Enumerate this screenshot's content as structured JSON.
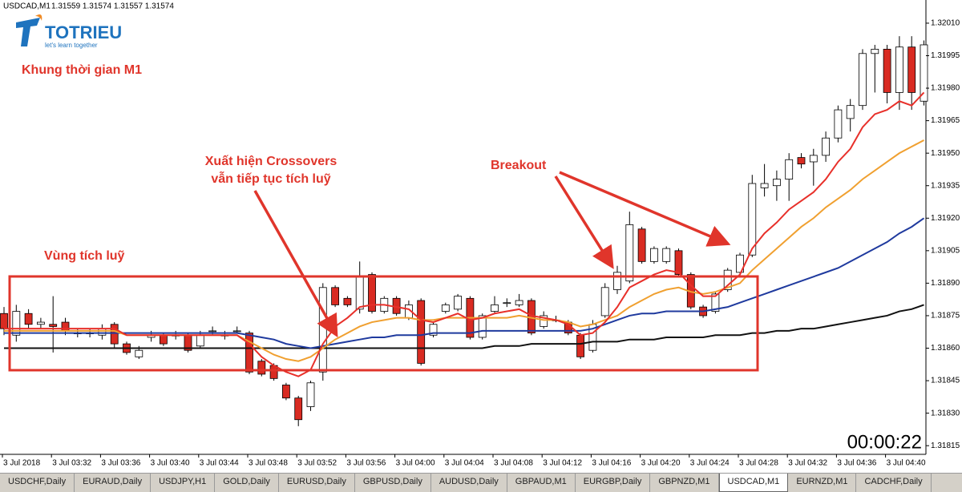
{
  "header": {
    "symbol": "USDCAD,M1",
    "quote": "1.31559 1.31574 1.31557 1.31574"
  },
  "logo": {
    "name": "TOTRIEU",
    "tagline": "let's learn together"
  },
  "timer": "00:00:22",
  "tabs": [
    "USDCHF,Daily",
    "EURAUD,Daily",
    "USDJPY,H1",
    "GOLD,Daily",
    "EURUSD,Daily",
    "GBPUSD,Daily",
    "AUDUSD,Daily",
    "GBPAUD,M1",
    "EURGBP,Daily",
    "GBPNZD,M1",
    "USDCAD,M1",
    "EURNZD,M1",
    "CADCHF,Daily"
  ],
  "chart_data": {
    "type": "candlestick",
    "annotations": [
      "Khung thời gian M1",
      "Xuất hiện Crossovers",
      "vẫn tiếp tục tích luỹ",
      "Breakout",
      "Vùng tích luỹ"
    ],
    "categories": [
      "3 Jul 2018",
      null,
      null,
      null,
      "3 Jul 03:32",
      null,
      null,
      null,
      "3 Jul 03:36",
      null,
      null,
      null,
      "3 Jul 03:40",
      null,
      null,
      null,
      "3 Jul 03:44",
      null,
      null,
      null,
      "3 Jul 03:48",
      null,
      null,
      null,
      "3 Jul 03:52",
      null,
      null,
      null,
      "3 Jul 03:56",
      null,
      null,
      null,
      "3 Jul 04:00",
      null,
      null,
      null,
      "3 Jul 04:04",
      null,
      null,
      null,
      "3 Jul 04:08",
      null,
      null,
      null,
      "3 Jul 04:12",
      null,
      null,
      null,
      "3 Jul 04:16",
      null,
      null,
      null,
      "3 Jul 04:20",
      null,
      null,
      null,
      "3 Jul 04:24",
      null,
      null,
      null,
      "3 Jul 04:28",
      null,
      null,
      null,
      "3 Jul 04:32",
      null,
      null,
      null,
      "3 Jul 04:36",
      null,
      null,
      null,
      "3 Jul 04:40",
      null,
      null,
      null
    ],
    "open": [
      1.31876,
      1.31866,
      1.31876,
      1.31871,
      1.31871,
      1.31872,
      1.31867,
      1.31867,
      1.31866,
      1.31871,
      1.31862,
      1.31856,
      1.31865,
      1.31866,
      1.31866,
      1.31866,
      1.31861,
      1.31868,
      1.31866,
      1.31868,
      1.31867,
      1.31854,
      1.31852,
      1.31843,
      1.31837,
      1.31833,
      1.31849,
      1.31888,
      1.31883,
      1.31878,
      1.31894,
      1.31877,
      1.31883,
      1.31874,
      1.31882,
      1.31866,
      1.31877,
      1.31878,
      1.31883,
      1.31865,
      1.31877,
      1.31881,
      1.3188,
      1.31882,
      1.3187,
      1.31873,
      1.31872,
      1.31866,
      1.31859,
      1.31875,
      1.31887,
      1.31891,
      1.31915,
      1.319,
      1.319,
      1.31905,
      1.31894,
      1.31879,
      1.31877,
      1.31887,
      1.31895,
      1.31903,
      1.31934,
      1.31935,
      1.31938,
      1.31948,
      1.31946,
      1.31949,
      1.31957,
      1.31966,
      1.31972,
      1.31996,
      1.31998,
      1.31978,
      1.31999,
      1.31974
    ],
    "high": [
      1.31879,
      1.3188,
      1.31878,
      1.31874,
      1.31884,
      1.31874,
      1.31869,
      1.31869,
      1.31871,
      1.31872,
      1.31863,
      1.31861,
      1.31868,
      1.31867,
      1.31868,
      1.31867,
      1.31868,
      1.3187,
      1.31868,
      1.3187,
      1.31868,
      1.31855,
      1.31853,
      1.31844,
      1.31838,
      1.31845,
      1.3189,
      1.31889,
      1.31884,
      1.319,
      1.31895,
      1.31884,
      1.31884,
      1.31882,
      1.31883,
      1.31872,
      1.31881,
      1.31885,
      1.31884,
      1.31876,
      1.31884,
      1.31883,
      1.31885,
      1.31883,
      1.31877,
      1.31875,
      1.31873,
      1.31867,
      1.31873,
      1.3189,
      1.31898,
      1.31923,
      1.31916,
      1.31907,
      1.31907,
      1.31906,
      1.31895,
      1.3188,
      1.31886,
      1.31897,
      1.31904,
      1.3194,
      1.31945,
      1.31942,
      1.3195,
      1.3195,
      1.31952,
      1.3196,
      1.31972,
      1.31975,
      1.31998,
      1.32,
      1.32,
      1.32004,
      1.32004,
      1.32002
    ],
    "low": [
      1.31866,
      1.31863,
      1.31869,
      1.31869,
      1.31858,
      1.31866,
      1.31865,
      1.31865,
      1.31864,
      1.3186,
      1.31857,
      1.31855,
      1.31863,
      1.31861,
      1.31864,
      1.31858,
      1.3186,
      1.31866,
      1.31864,
      1.31867,
      1.31848,
      1.31847,
      1.31845,
      1.31836,
      1.31824,
      1.31831,
      1.31845,
      1.31879,
      1.31879,
      1.31876,
      1.31876,
      1.31876,
      1.31875,
      1.31873,
      1.31852,
      1.31865,
      1.31876,
      1.31877,
      1.31864,
      1.31864,
      1.31876,
      1.31879,
      1.31879,
      1.31866,
      1.31869,
      1.31872,
      1.31866,
      1.31855,
      1.31858,
      1.31874,
      1.31885,
      1.3189,
      1.31899,
      1.31899,
      1.31899,
      1.31893,
      1.31878,
      1.31874,
      1.31876,
      1.31886,
      1.31894,
      1.31902,
      1.3193,
      1.31928,
      1.31928,
      1.31943,
      1.31935,
      1.31946,
      1.31955,
      1.3196,
      1.3197,
      1.31978,
      1.31973,
      1.3197,
      1.3197,
      1.31972
    ],
    "close": [
      1.31869,
      1.31877,
      1.31871,
      1.31872,
      1.3187,
      1.31868,
      1.31867,
      1.31867,
      1.31869,
      1.31862,
      1.31858,
      1.31859,
      1.31866,
      1.31862,
      1.31866,
      1.31859,
      1.31866,
      1.31868,
      1.31866,
      1.31868,
      1.31849,
      1.31848,
      1.31846,
      1.31837,
      1.31827,
      1.31844,
      1.31888,
      1.3188,
      1.3188,
      1.31893,
      1.31877,
      1.31883,
      1.31876,
      1.3188,
      1.31853,
      1.31871,
      1.3188,
      1.31884,
      1.31865,
      1.31875,
      1.3188,
      1.31881,
      1.31882,
      1.31867,
      1.31875,
      1.31873,
      1.31867,
      1.31856,
      1.31871,
      1.31888,
      1.31895,
      1.31917,
      1.319,
      1.31906,
      1.31906,
      1.31894,
      1.31879,
      1.31875,
      1.31885,
      1.31896,
      1.31903,
      1.31936,
      1.31936,
      1.31938,
      1.31947,
      1.31945,
      1.31949,
      1.31957,
      1.3197,
      1.31972,
      1.31996,
      1.31998,
      1.31978,
      1.31999,
      1.31978,
      1.32
    ],
    "up_color": "#ffffff",
    "down_color": "#d92b22",
    "moving_averages": [
      {
        "color": "#111111",
        "values": [
          1.3186,
          1.3186,
          1.3186,
          1.3186,
          1.3186,
          1.3186,
          1.3186,
          1.3186,
          1.3186,
          1.3186,
          1.3186,
          1.3186,
          1.3186,
          1.3186,
          1.3186,
          1.3186,
          1.3186,
          1.3186,
          1.3186,
          1.3186,
          1.3186,
          1.3186,
          1.3186,
          1.3186,
          1.3186,
          1.3186,
          1.3186,
          1.3186,
          1.3186,
          1.3186,
          1.3186,
          1.3186,
          1.3186,
          1.3186,
          1.3186,
          1.3186,
          1.3186,
          1.3186,
          1.3186,
          1.3186,
          1.31861,
          1.31861,
          1.31861,
          1.31862,
          1.31862,
          1.31862,
          1.31862,
          1.31862,
          1.31863,
          1.31863,
          1.31863,
          1.31864,
          1.31864,
          1.31864,
          1.31865,
          1.31865,
          1.31865,
          1.31865,
          1.31866,
          1.31866,
          1.31866,
          1.31867,
          1.31867,
          1.31868,
          1.31868,
          1.31869,
          1.31869,
          1.3187,
          1.31871,
          1.31872,
          1.31873,
          1.31874,
          1.31875,
          1.31877,
          1.31878,
          1.3188
        ]
      },
      {
        "color": "#1f3a9e",
        "values": [
          1.31867,
          1.31867,
          1.31867,
          1.31867,
          1.31867,
          1.31867,
          1.31867,
          1.31867,
          1.31867,
          1.31867,
          1.31867,
          1.31867,
          1.31867,
          1.31867,
          1.31867,
          1.31867,
          1.31867,
          1.31867,
          1.31867,
          1.31867,
          1.31866,
          1.31865,
          1.31864,
          1.31862,
          1.31861,
          1.3186,
          1.31861,
          1.31862,
          1.31863,
          1.31864,
          1.31865,
          1.31865,
          1.31866,
          1.31866,
          1.31866,
          1.31867,
          1.31867,
          1.31867,
          1.31867,
          1.31868,
          1.31868,
          1.31868,
          1.31868,
          1.31868,
          1.31868,
          1.31868,
          1.31868,
          1.31868,
          1.31869,
          1.31871,
          1.31873,
          1.31875,
          1.31876,
          1.31876,
          1.31877,
          1.31877,
          1.31877,
          1.31877,
          1.31878,
          1.31879,
          1.31881,
          1.31883,
          1.31885,
          1.31887,
          1.31889,
          1.31891,
          1.31893,
          1.31895,
          1.31897,
          1.319,
          1.31903,
          1.31906,
          1.31909,
          1.31913,
          1.31916,
          1.3192
        ]
      },
      {
        "color": "#f0a030",
        "values": [
          1.31868,
          1.31868,
          1.31868,
          1.31868,
          1.31868,
          1.31868,
          1.31868,
          1.31868,
          1.31868,
          1.31868,
          1.31866,
          1.31866,
          1.31866,
          1.31866,
          1.31866,
          1.31866,
          1.31866,
          1.31866,
          1.31866,
          1.31866,
          1.31863,
          1.3186,
          1.31857,
          1.31855,
          1.31854,
          1.31856,
          1.3186,
          1.31864,
          1.31867,
          1.3187,
          1.31872,
          1.31873,
          1.31874,
          1.31874,
          1.31873,
          1.31873,
          1.31874,
          1.31874,
          1.31874,
          1.31874,
          1.31874,
          1.31874,
          1.31875,
          1.31874,
          1.31873,
          1.31873,
          1.31872,
          1.3187,
          1.31871,
          1.31873,
          1.31875,
          1.31879,
          1.31882,
          1.31885,
          1.31887,
          1.31888,
          1.31886,
          1.31885,
          1.31886,
          1.31888,
          1.3189,
          1.31896,
          1.31901,
          1.31906,
          1.31911,
          1.31916,
          1.3192,
          1.31925,
          1.31929,
          1.31933,
          1.31938,
          1.31942,
          1.31946,
          1.3195,
          1.31953,
          1.31956
        ]
      },
      {
        "color": "#e8302a",
        "values": [
          1.31869,
          1.31869,
          1.31869,
          1.31869,
          1.31869,
          1.31869,
          1.31869,
          1.31869,
          1.31869,
          1.31869,
          1.31866,
          1.31866,
          1.31866,
          1.31866,
          1.31866,
          1.31866,
          1.31866,
          1.31866,
          1.31866,
          1.31866,
          1.31862,
          1.31856,
          1.31852,
          1.31849,
          1.31847,
          1.3185,
          1.31862,
          1.3187,
          1.31874,
          1.31879,
          1.3188,
          1.3188,
          1.31879,
          1.31878,
          1.31873,
          1.31872,
          1.31874,
          1.31876,
          1.31873,
          1.31874,
          1.31876,
          1.31877,
          1.31878,
          1.31875,
          1.31874,
          1.31873,
          1.31871,
          1.31866,
          1.31867,
          1.31872,
          1.31879,
          1.31888,
          1.31891,
          1.31894,
          1.31896,
          1.31895,
          1.31889,
          1.31884,
          1.31884,
          1.31889,
          1.31894,
          1.31906,
          1.31913,
          1.31918,
          1.31924,
          1.31928,
          1.31932,
          1.31938,
          1.31946,
          1.31952,
          1.31962,
          1.31968,
          1.3197,
          1.31974,
          1.31972,
          1.31978
        ]
      }
    ],
    "ylim": [
      1.31811,
      1.32017
    ],
    "yticks": [
      {
        "value": 1.3201,
        "label": "1.32010"
      },
      1.31995,
      {
        "value": 1.3198,
        "label": "1.31980"
      },
      1.31965,
      {
        "value": 1.3195,
        "label": "1.31950"
      },
      1.31935,
      {
        "value": 1.3192,
        "label": "1.31920"
      },
      1.31905,
      {
        "value": 1.3189,
        "label": "1.31890"
      },
      1.31875,
      {
        "value": 1.3186,
        "label": "1.31860"
      },
      1.31845,
      {
        "value": 1.3183,
        "label": "1.31830"
      },
      1.31815
    ],
    "grid": false
  }
}
